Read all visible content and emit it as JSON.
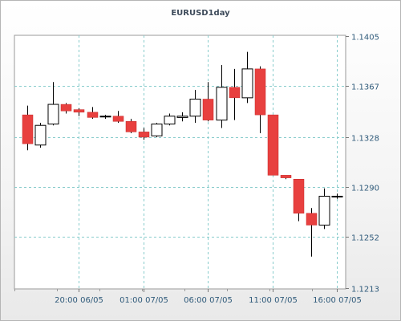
{
  "chart_data": {
    "type": "candlestick",
    "title": "EURUSD1day",
    "y_ticks": [
      "1.1405",
      "1.1367",
      "1.1328",
      "1.1290",
      "1.1252",
      "1.1213"
    ],
    "ylim": [
      1.1213,
      1.1405
    ],
    "x_ticks": [
      "20:00 06/05",
      "01:00 07/05",
      "06:00 07/05",
      "11:00 07/05",
      "16:00 07/05"
    ],
    "x_tick_bar_index": [
      4,
      9,
      14,
      19,
      24
    ],
    "grid": true,
    "colors": {
      "down": "#e8403f",
      "up": "#ffffff",
      "outline": "#000000",
      "grid": "#88cccc"
    },
    "candles": [
      {
        "o": 1.1345,
        "h": 1.1352,
        "l": 1.1318,
        "c": 1.1323
      },
      {
        "o": 1.1322,
        "h": 1.1339,
        "l": 1.132,
        "c": 1.1337
      },
      {
        "o": 1.1338,
        "h": 1.137,
        "l": 1.1337,
        "c": 1.1353
      },
      {
        "o": 1.1353,
        "h": 1.1354,
        "l": 1.1346,
        "c": 1.1348
      },
      {
        "o": 1.1349,
        "h": 1.135,
        "l": 1.1344,
        "c": 1.1347
      },
      {
        "o": 1.1347,
        "h": 1.1351,
        "l": 1.1342,
        "c": 1.1343
      },
      {
        "o": 1.1344,
        "h": 1.1345,
        "l": 1.1342,
        "c": 1.1344
      },
      {
        "o": 1.1344,
        "h": 1.1348,
        "l": 1.1339,
        "c": 1.134
      },
      {
        "o": 1.134,
        "h": 1.1342,
        "l": 1.1331,
        "c": 1.1332
      },
      {
        "o": 1.1332,
        "h": 1.1335,
        "l": 1.1326,
        "c": 1.1328
      },
      {
        "o": 1.1329,
        "h": 1.1339,
        "l": 1.1328,
        "c": 1.1338
      },
      {
        "o": 1.1338,
        "h": 1.1346,
        "l": 1.1337,
        "c": 1.1344
      },
      {
        "o": 1.1343,
        "h": 1.1347,
        "l": 1.134,
        "c": 1.1344
      },
      {
        "o": 1.1344,
        "h": 1.1364,
        "l": 1.1339,
        "c": 1.1357
      },
      {
        "o": 1.1357,
        "h": 1.137,
        "l": 1.134,
        "c": 1.1341
      },
      {
        "o": 1.1341,
        "h": 1.1383,
        "l": 1.1335,
        "c": 1.1366
      },
      {
        "o": 1.1366,
        "h": 1.138,
        "l": 1.1341,
        "c": 1.1358
      },
      {
        "o": 1.1358,
        "h": 1.1393,
        "l": 1.1354,
        "c": 1.138
      },
      {
        "o": 1.138,
        "h": 1.1382,
        "l": 1.1331,
        "c": 1.1345
      },
      {
        "o": 1.1345,
        "h": 1.1345,
        "l": 1.1299,
        "c": 1.1299
      },
      {
        "o": 1.1299,
        "h": 1.1299,
        "l": 1.1296,
        "c": 1.1297
      },
      {
        "o": 1.1296,
        "h": 1.1296,
        "l": 1.1264,
        "c": 1.127
      },
      {
        "o": 1.127,
        "h": 1.1274,
        "l": 1.1237,
        "c": 1.1261
      },
      {
        "o": 1.1261,
        "h": 1.1289,
        "l": 1.1258,
        "c": 1.1283
      },
      {
        "o": 1.1283,
        "h": 1.1285,
        "l": 1.1281,
        "c": 1.1283
      }
    ]
  }
}
